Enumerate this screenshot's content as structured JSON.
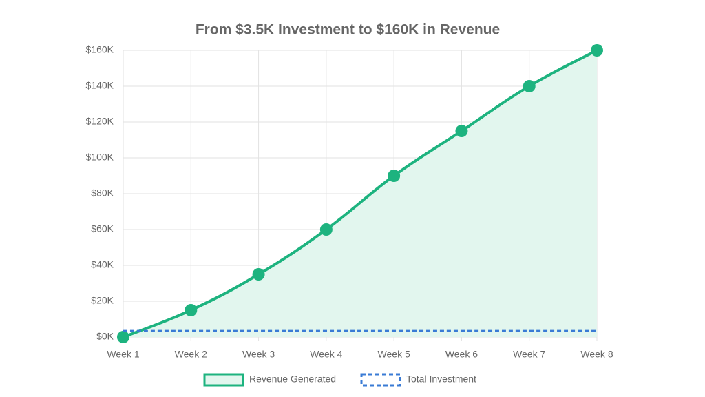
{
  "chart_data": {
    "type": "line",
    "title": "From $3.5K Investment to $160K in Revenue",
    "categories": [
      "Week 1",
      "Week 2",
      "Week 3",
      "Week 4",
      "Week 5",
      "Week 6",
      "Week 7",
      "Week 8"
    ],
    "series": [
      {
        "name": "Revenue Generated",
        "color": "#1db37f",
        "fill": "#e2f6ee",
        "dashed": false,
        "values": [
          0,
          15000,
          35000,
          60000,
          90000,
          115000,
          140000,
          160000
        ]
      },
      {
        "name": "Total Investment",
        "color": "#3a7bd5",
        "dashed": true,
        "values": [
          3500,
          3500,
          3500,
          3500,
          3500,
          3500,
          3500,
          3500
        ]
      }
    ],
    "ylim": [
      0,
      160000
    ],
    "yticks": [
      {
        "value": 0,
        "label": "$0K"
      },
      {
        "value": 20000,
        "label": "$20K"
      },
      {
        "value": 40000,
        "label": "$40K"
      },
      {
        "value": 60000,
        "label": "$60K"
      },
      {
        "value": 80000,
        "label": "$80K"
      },
      {
        "value": 100000,
        "label": "$100K"
      },
      {
        "value": 120000,
        "label": "$120K"
      },
      {
        "value": 140000,
        "label": "$140K"
      },
      {
        "value": 160000,
        "label": "$160K"
      }
    ],
    "grid": true,
    "legend": "bottom"
  }
}
